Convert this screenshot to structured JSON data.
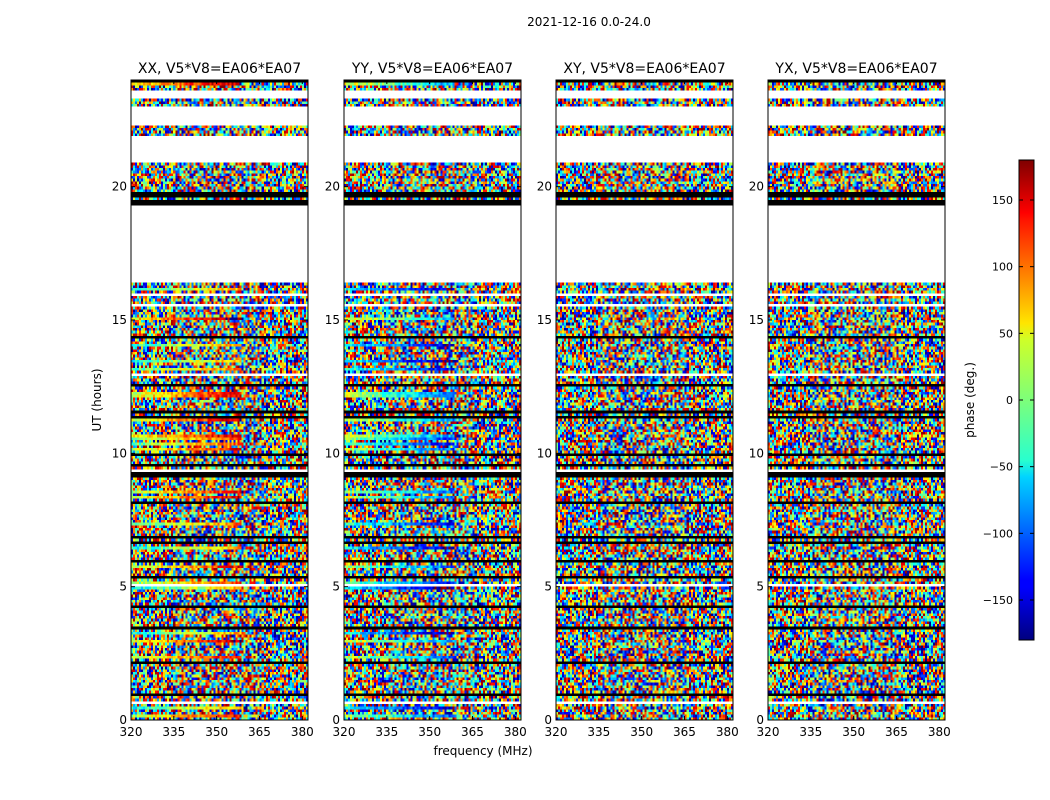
{
  "figure": {
    "suptitle": "2021-12-16 0.0-24.0",
    "ylabel": "UT (hours)",
    "xlabel": "frequency (MHz)",
    "colorbar_label": "phase (deg.)"
  },
  "chart_data": {
    "type": "heatmap",
    "x": {
      "label": "frequency (MHz)",
      "range": [
        320,
        382
      ],
      "ticks": [
        320,
        335,
        350,
        365,
        380
      ]
    },
    "y": {
      "label": "UT (hours)",
      "range": [
        0,
        24
      ],
      "ticks": [
        0,
        5,
        10,
        15,
        20
      ]
    },
    "colorbar": {
      "label": "phase (deg.)",
      "range": [
        -180,
        180
      ],
      "ticks": [
        -150,
        -100,
        -50,
        0,
        50,
        100,
        150
      ],
      "colormap": "jet"
    },
    "panels": [
      {
        "title": "XX, V5*V8=EA06*EA07",
        "coherent": true,
        "phase_slope": 1
      },
      {
        "title": "YY, V5*V8=EA06*EA07",
        "coherent": true,
        "phase_slope": -1
      },
      {
        "title": "XY, V5*V8=EA06*EA07",
        "coherent": false,
        "phase_slope": 0
      },
      {
        "title": "YX, V5*V8=EA06*EA07",
        "coherent": false,
        "phase_slope": 0
      }
    ],
    "data_gaps_ut": [
      [
        16.4,
        19.3
      ],
      [
        20.9,
        21.9
      ],
      [
        22.3,
        23.0
      ],
      [
        23.35,
        23.6
      ]
    ],
    "flagged_bands_ut": [
      [
        19.3,
        19.5
      ],
      [
        19.65,
        19.8
      ]
    ]
  }
}
